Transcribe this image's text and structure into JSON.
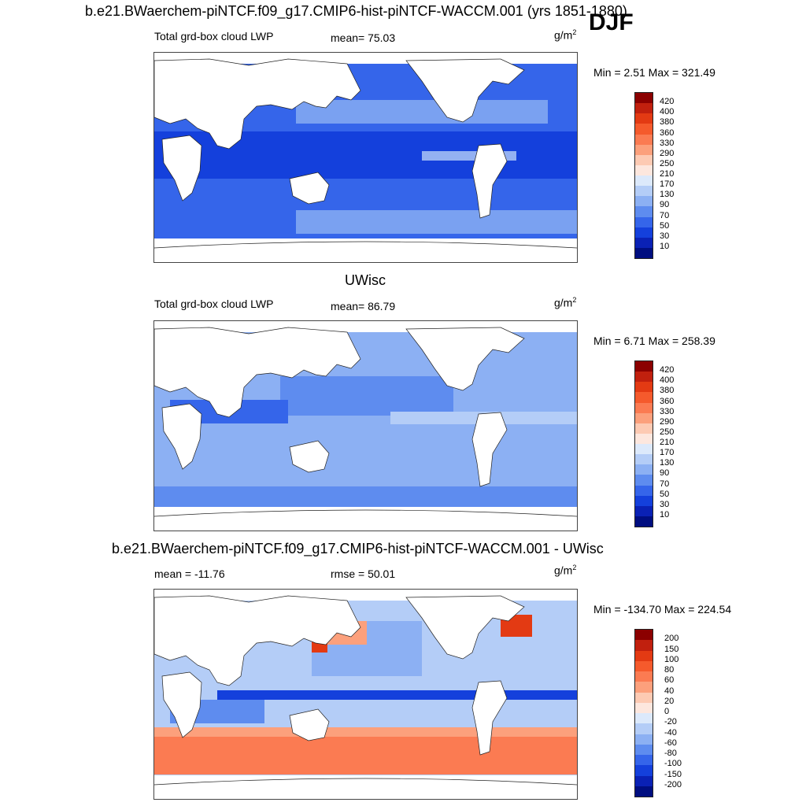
{
  "header": {
    "title": "b.e21.BWaerchem-piNTCF.f09_g17.CMIP6-hist-piNTCF-WACCM.001 (yrs 1851-1880)",
    "season": "DJF"
  },
  "panels": [
    {
      "id": "test",
      "title": "",
      "field_label": "Total grd-box cloud LWP",
      "stat_text": "mean=  75.03",
      "units_base": "g/m",
      "units_exp": "2",
      "minmax_text": "Min =   2.51 Max = 321.49",
      "levels": [
        "420",
        "400",
        "380",
        "360",
        "330",
        "290",
        "250",
        "210",
        "170",
        "130",
        "90",
        "70",
        "50",
        "30",
        "10"
      ],
      "colors": [
        "#8b0000",
        "#c1200e",
        "#e33a13",
        "#f55a2c",
        "#fb7b52",
        "#fca07c",
        "#fdcab3",
        "#fde7de",
        "#dce9fb",
        "#b4cdf7",
        "#8cb0f3",
        "#5e8cef",
        "#3565ea",
        "#1440dc",
        "#0a21b5",
        "#000e80"
      ]
    },
    {
      "id": "control",
      "title": "UWisc",
      "field_label": "Total grd-box cloud LWP",
      "stat_text": "mean=  86.79",
      "units_base": "g/m",
      "units_exp": "2",
      "minmax_text": "Min =   6.71 Max = 258.39",
      "levels": [
        "420",
        "400",
        "380",
        "360",
        "330",
        "290",
        "250",
        "210",
        "170",
        "130",
        "90",
        "70",
        "50",
        "30",
        "10"
      ],
      "colors": [
        "#8b0000",
        "#c1200e",
        "#e33a13",
        "#f55a2c",
        "#fb7b52",
        "#fca07c",
        "#fdcab3",
        "#fde7de",
        "#dce9fb",
        "#b4cdf7",
        "#8cb0f3",
        "#5e8cef",
        "#3565ea",
        "#1440dc",
        "#0a21b5",
        "#000e80"
      ]
    },
    {
      "id": "difference",
      "title": "b.e21.BWaerchem-piNTCF.f09_g17.CMIP6-hist-piNTCF-WACCM.001 - UWisc",
      "field_label": "mean = -11.76",
      "stat_text": "rmse =  50.01",
      "units_base": "g/m",
      "units_exp": "2",
      "minmax_text": "Min = -134.70 Max = 224.54",
      "levels": [
        "200",
        "150",
        "100",
        "80",
        "60",
        "40",
        "20",
        "0",
        "-20",
        "-40",
        "-60",
        "-80",
        "-100",
        "-150",
        "-200"
      ],
      "colors": [
        "#8b0000",
        "#c1200e",
        "#e33a13",
        "#f55a2c",
        "#fb7b52",
        "#fca07c",
        "#fdcab3",
        "#fde7de",
        "#dce9fb",
        "#b4cdf7",
        "#8cb0f3",
        "#5e8cef",
        "#3565ea",
        "#1440dc",
        "#0a21b5",
        "#000e80"
      ]
    }
  ]
}
